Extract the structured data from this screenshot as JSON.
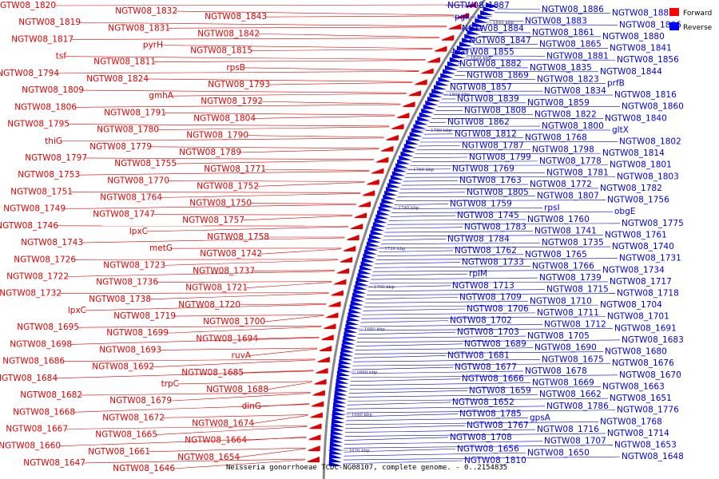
{
  "caption": "Neisseria gonorrhoeae TCDC-NG08107, complete genome. - 0..2154835",
  "legend": [
    {
      "label": "Forward",
      "color": "#ff0000"
    },
    {
      "label": "Reverse",
      "color": "#0000ff"
    }
  ],
  "colors": {
    "forward": "#e00000",
    "reverse": "#0000dd",
    "backbone": "#888888"
  },
  "ticks": [
    "1620 kbp",
    "1640 kbp",
    "1660 kbp",
    "1680 kbp",
    "1700 kbp",
    "1720 kbp",
    "1740 kbp",
    "1760 kbp",
    "1780 kbp",
    "1800 kbp",
    "1820 kbp",
    "1840 kbp"
  ],
  "forward_labels": [
    "NGTW08_1820",
    "NGTW08_1832",
    "NGTW08_1843",
    "NGTW08_1819",
    "NGTW08_1831",
    "NGTW08_1842",
    "NGTW08_1817",
    "pyrH",
    "NGTW08_1815",
    "tsf",
    "NGTW08_1811",
    "rpsB",
    "NGTW08_1794",
    "NGTW08_1824",
    "NGTW08_1793",
    "NGTW08_1809",
    "gmhA",
    "NGTW08_1792",
    "NGTW08_1806",
    "NGTW08_1791",
    "NGTW08_1804",
    "NGTW08_1795",
    "NGTW08_1780",
    "NGTW08_1790",
    "thiG",
    "NGTW08_1779",
    "NGTW08_1789",
    "NGTW08_1797",
    "NGTW08_1755",
    "NGTW08_1771",
    "NGTW08_1753",
    "NGTW08_1770",
    "NGTW08_1752",
    "NGTW08_1751",
    "NGTW08_1764",
    "NGTW08_1750",
    "NGTW08_1749",
    "NGTW08_1747",
    "NGTW08_1757",
    "NGTW08_1746",
    "lpxC",
    "NGTW08_1758",
    "NGTW08_1743",
    "metG",
    "NGTW08_1742",
    "NGTW08_1726",
    "NGTW08_1723",
    "NGTW08_1737",
    "NGTW08_1722",
    "NGTW08_1736",
    "NGTW08_1721",
    "NGTW08_1732",
    "NGTW08_1738",
    "NGTW08_1720",
    "lpxC",
    "NGTW08_1719",
    "NGTW08_1700",
    "NGTW08_1695",
    "NGTW08_1699",
    "NGTW08_1694",
    "NGTW08_1698",
    "NGTW08_1693",
    "ruvA",
    "NGTW08_1686",
    "NGTW08_1692",
    "NGTW08_1685",
    "NGTW08_1684",
    "trpC",
    "NGTW08_1688",
    "NGTW08_1682",
    "NGTW08_1679",
    "dinG",
    "NGTW08_1668",
    "NGTW08_1672",
    "NGTW08_1674",
    "NGTW08_1667",
    "NGTW08_1665",
    "NGTW08_1664",
    "NGTW08_1660",
    "NGTW08_1661",
    "NGTW08_1654",
    "NGTW08_1647",
    "NGTW08_1646"
  ],
  "reverse_labels": [
    "NGTW08_1887",
    "NGTW08_1886",
    "NGTW08_1885",
    "pgk",
    "NGTW08_1883",
    "NGTW08_1866",
    "NGTW08_1884",
    "NGTW08_1861",
    "NGTW08_1880",
    "NGTW08_1847",
    "NGTW08_1865",
    "NGTW08_1841",
    "NGTW08_1855",
    "NGTW08_1881",
    "NGTW08_1856",
    "NGTW08_1882",
    "NGTW08_1835",
    "NGTW08_1844",
    "NGTW08_1869",
    "NGTW08_1823",
    "prfB",
    "NGTW08_1857",
    "NGTW08_1834",
    "NGTW08_1816",
    "NGTW08_1839",
    "NGTW08_1859",
    "NGTW08_1860",
    "NGTW08_1808",
    "NGTW08_1822",
    "NGTW08_1840",
    "NGTW08_1862",
    "NGTW08_1800",
    "gltX",
    "NGTW08_1812",
    "NGTW08_1768",
    "NGTW08_1802",
    "NGTW08_1787",
    "NGTW08_1798",
    "NGTW08_1814",
    "NGTW08_1799",
    "NGTW08_1778",
    "NGTW08_1801",
    "NGTW08_1769",
    "NGTW08_1781",
    "NGTW08_1803",
    "NGTW08_1763",
    "NGTW08_1772",
    "NGTW08_1782",
    "NGTW08_1805",
    "NGTW08_1807",
    "NGTW08_1756",
    "NGTW08_1759",
    "rpsI",
    "obgE",
    "NGTW08_1745",
    "NGTW08_1760",
    "NGTW08_1775",
    "NGTW08_1783",
    "NGTW08_1741",
    "NGTW08_1761",
    "NGTW08_1784",
    "NGTW08_1735",
    "NGTW08_1740",
    "NGTW08_1762",
    "NGTW08_1765",
    "NGTW08_1731",
    "NGTW08_1733",
    "NGTW08_1766",
    "NGTW08_1734",
    "rplM",
    "NGTW08_1739",
    "NGTW08_1717",
    "NGTW08_1713",
    "NGTW08_1715",
    "NGTW08_1718",
    "NGTW08_1709",
    "NGTW08_1710",
    "NGTW08_1704",
    "NGTW08_1706",
    "NGTW08_1711",
    "NGTW08_1701",
    "NGTW08_1702",
    "NGTW08_1712",
    "NGTW08_1691",
    "NGTW08_1703",
    "NGTW08_1705",
    "NGTW08_1683",
    "NGTW08_1689",
    "NGTW08_1690",
    "NGTW08_1680",
    "NGTW08_1681",
    "NGTW08_1675",
    "NGTW08_1676",
    "NGTW08_1677",
    "NGTW08_1678",
    "NGTW08_1670",
    "NGTW08_1666",
    "NGTW08_1669",
    "NGTW08_1663",
    "NGTW08_1659",
    "NGTW08_1662",
    "NGTW08_1651",
    "NGTW08_1652",
    "NGTW08_1786",
    "NGTW08_1776",
    "NGTW08_1785",
    "gpsA",
    "NGTW08_1768",
    "NGTW08_1767",
    "NGTW08_1716",
    "NGTW08_1714",
    "NGTW08_1708",
    "NGTW08_1707",
    "NGTW08_1653",
    "NGTW08_1656",
    "NGTW08_1650",
    "NGTW08_1648",
    "NGTW08_1810"
  ]
}
